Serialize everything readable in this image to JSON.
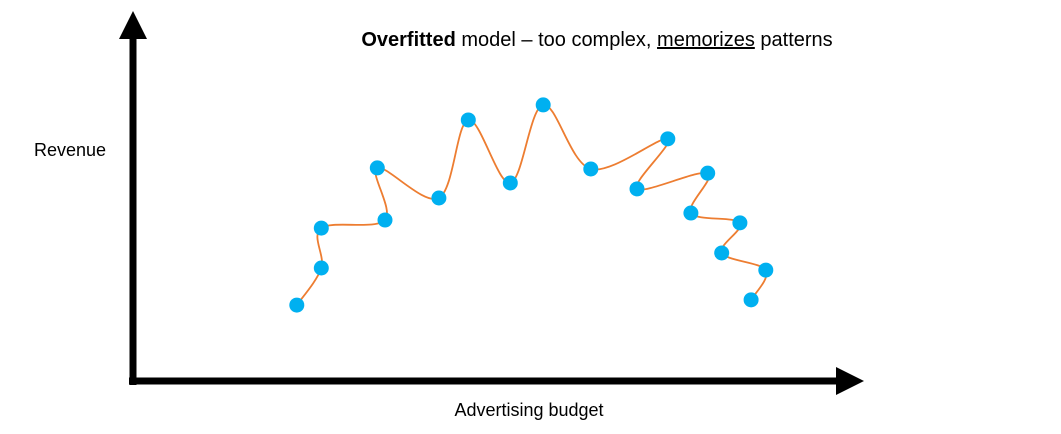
{
  "chart_data": {
    "type": "scatter",
    "title": [
      "Overfitted",
      " model – too complex, ",
      "memorizes",
      " patterns"
    ],
    "x_label": "Advertising budget",
    "y_label": "Revenue",
    "xlim": [
      0,
      100
    ],
    "ylim": [
      0,
      100
    ],
    "point_color": "#00b0f0",
    "line_color": "#ed7d31",
    "x": [
      23.4,
      26.9,
      26.9,
      36.0,
      34.9,
      43.7,
      47.9,
      53.9,
      58.6,
      65.4,
      76.4,
      72.0,
      82.1,
      79.7,
      86.7,
      84.1,
      90.4,
      88.3
    ],
    "y": [
      21.4,
      32.0,
      43.4,
      45.7,
      60.6,
      52.0,
      74.3,
      56.3,
      78.6,
      60.3,
      68.9,
      54.6,
      59.1,
      47.7,
      44.9,
      36.3,
      31.4,
      22.9
    ]
  }
}
